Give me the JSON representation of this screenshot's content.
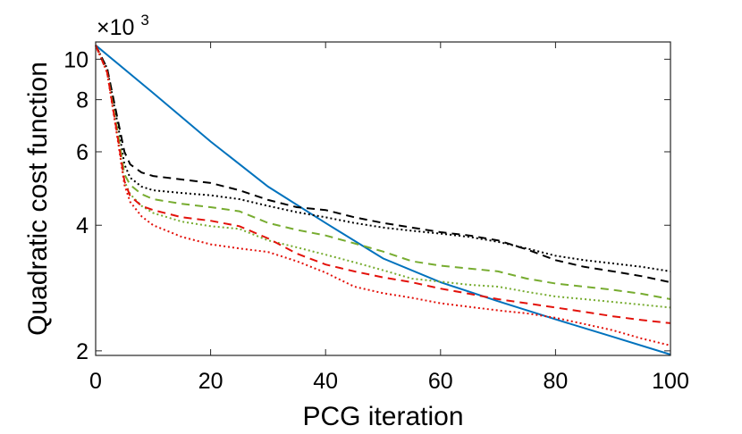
{
  "chart_data": {
    "type": "line",
    "xlabel": "PCG iteration",
    "ylabel": "Quadratic cost function",
    "yscale": "log",
    "xlim": [
      0,
      100
    ],
    "ylim": [
      1.95,
      11.0
    ],
    "y_multiplier": {
      "base": "×10",
      "exponent": "3"
    },
    "xticks": [
      0,
      20,
      40,
      60,
      80,
      100
    ],
    "xtick_labels": [
      "0",
      "20",
      "40",
      "60",
      "80",
      "100"
    ],
    "yticks": [
      2,
      4,
      6,
      8,
      10
    ],
    "ytick_labels": [
      "2",
      "4",
      "6",
      "8",
      "10"
    ],
    "grid": false,
    "series": [
      {
        "name": "blue-solid",
        "color": "#0072bd",
        "dash": "",
        "x": [
          0,
          10,
          20,
          30,
          40,
          50,
          60,
          70,
          80,
          90,
          100
        ],
        "y": [
          10.8,
          8.3,
          6.35,
          4.95,
          4.05,
          3.33,
          2.92,
          2.63,
          2.38,
          2.16,
          1.96
        ]
      },
      {
        "name": "black-dashed",
        "color": "#000000",
        "dash": "9,6",
        "x": [
          0,
          2,
          4,
          5,
          6,
          8,
          10,
          15,
          20,
          25,
          30,
          35,
          40,
          45,
          50,
          55,
          60,
          65,
          70,
          75,
          80,
          85,
          90,
          95,
          100
        ],
        "y": [
          10.8,
          9.5,
          7.0,
          6.0,
          5.6,
          5.35,
          5.25,
          5.15,
          5.05,
          4.85,
          4.6,
          4.42,
          4.35,
          4.18,
          4.05,
          3.95,
          3.85,
          3.78,
          3.68,
          3.5,
          3.3,
          3.18,
          3.1,
          3.02,
          2.92
        ]
      },
      {
        "name": "black-dotted",
        "color": "#000000",
        "dash": "2,3",
        "x": [
          0,
          2,
          4,
          5,
          6,
          8,
          10,
          15,
          20,
          25,
          30,
          35,
          40,
          45,
          50,
          55,
          60,
          65,
          70,
          75,
          80,
          85,
          90,
          95,
          100
        ],
        "y": [
          10.8,
          9.5,
          6.8,
          5.6,
          5.2,
          4.95,
          4.85,
          4.78,
          4.72,
          4.62,
          4.45,
          4.3,
          4.18,
          4.05,
          3.95,
          3.88,
          3.82,
          3.75,
          3.65,
          3.52,
          3.38,
          3.3,
          3.24,
          3.18,
          3.1
        ]
      },
      {
        "name": "green-dashed",
        "color": "#77ac30",
        "dash": "9,6",
        "x": [
          0,
          2,
          4,
          5,
          6,
          8,
          10,
          15,
          20,
          25,
          30,
          35,
          40,
          45,
          50,
          55,
          60,
          65,
          70,
          75,
          80,
          85,
          90,
          95,
          100
        ],
        "y": [
          10.8,
          9.3,
          6.5,
          5.3,
          5.0,
          4.75,
          4.62,
          4.5,
          4.42,
          4.32,
          4.05,
          3.9,
          3.78,
          3.62,
          3.46,
          3.28,
          3.2,
          3.15,
          3.1,
          2.98,
          2.9,
          2.85,
          2.8,
          2.74,
          2.66
        ]
      },
      {
        "name": "green-dotted",
        "color": "#77ac30",
        "dash": "2,3",
        "x": [
          0,
          2,
          4,
          5,
          6,
          8,
          10,
          15,
          20,
          25,
          30,
          35,
          40,
          45,
          50,
          55,
          60,
          65,
          70,
          75,
          80,
          85,
          90,
          95,
          100
        ],
        "y": [
          10.8,
          9.3,
          6.3,
          5.1,
          4.75,
          4.45,
          4.28,
          4.08,
          3.98,
          3.92,
          3.68,
          3.54,
          3.4,
          3.26,
          3.12,
          2.98,
          2.93,
          2.88,
          2.85,
          2.77,
          2.7,
          2.66,
          2.62,
          2.58,
          2.54
        ]
      },
      {
        "name": "red-dashed",
        "color": "#e3120b",
        "dash": "9,6",
        "x": [
          0,
          2,
          4,
          5,
          6,
          8,
          10,
          15,
          20,
          25,
          30,
          35,
          40,
          45,
          50,
          55,
          60,
          65,
          70,
          75,
          80,
          85,
          90,
          95,
          100
        ],
        "y": [
          10.8,
          9.3,
          6.3,
          5.1,
          4.7,
          4.45,
          4.35,
          4.18,
          4.1,
          3.98,
          3.72,
          3.42,
          3.22,
          3.1,
          3.0,
          2.92,
          2.82,
          2.74,
          2.66,
          2.6,
          2.54,
          2.48,
          2.42,
          2.37,
          2.33
        ]
      },
      {
        "name": "red-dotted",
        "color": "#e3120b",
        "dash": "2,3",
        "x": [
          0,
          2,
          4,
          5,
          6,
          8,
          10,
          15,
          20,
          25,
          30,
          35,
          40,
          45,
          50,
          55,
          60,
          65,
          70,
          75,
          80,
          85,
          90,
          95,
          100
        ],
        "y": [
          10.8,
          9.3,
          6.2,
          5.0,
          4.55,
          4.2,
          4.0,
          3.75,
          3.6,
          3.52,
          3.45,
          3.28,
          3.08,
          2.85,
          2.75,
          2.68,
          2.6,
          2.55,
          2.5,
          2.46,
          2.4,
          2.32,
          2.24,
          2.14,
          2.06
        ]
      }
    ]
  }
}
